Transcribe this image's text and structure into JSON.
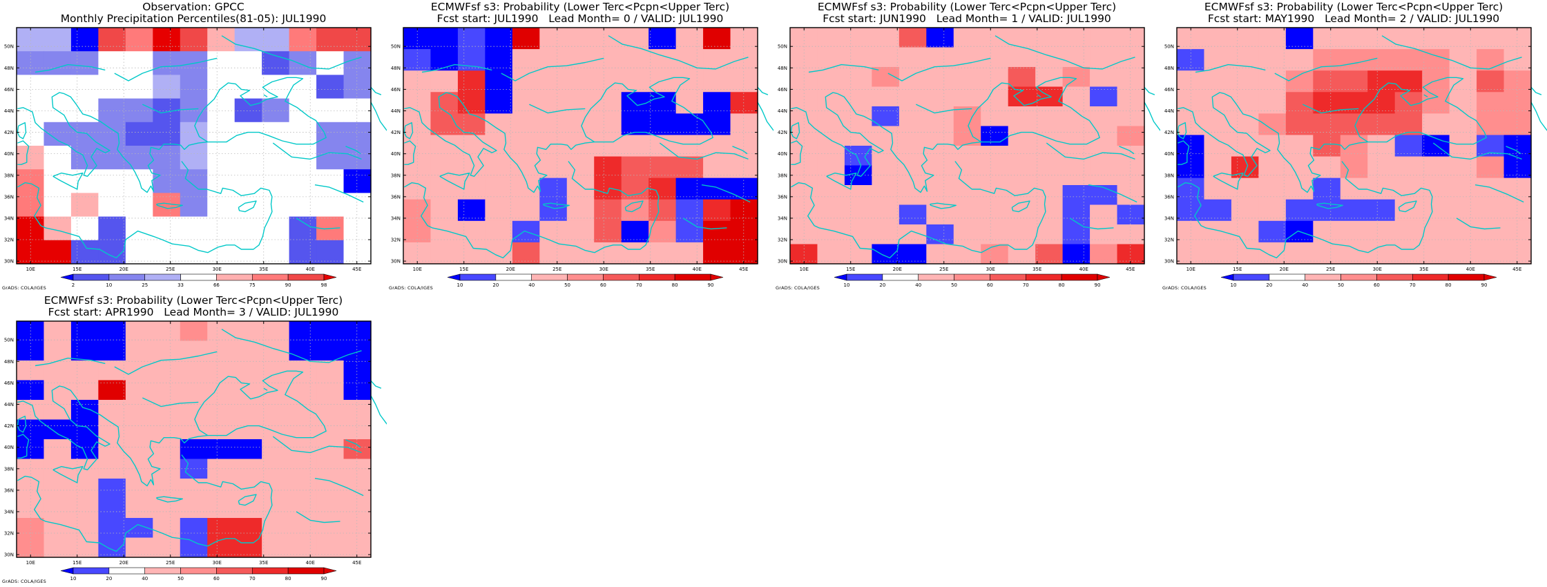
{
  "panels": [
    {
      "title1": "Observation: GPCC",
      "title2": "Monthly Precipitation Percentiles(81-05): JUL1990",
      "colorbar": {
        "labels": [
          "2",
          "10",
          "25",
          "33",
          "66",
          "75",
          "90",
          "98"
        ],
        "colors": [
          "#0000ff",
          "#5555ee",
          "#8585ee",
          "#b0b0f5",
          "#ffffff",
          "#ffb0b0",
          "#ff7a7a",
          "#f04848",
          "#e60000"
        ]
      },
      "cells": [
        [
          3,
          3,
          0,
          7,
          6,
          8,
          7,
          5,
          3,
          3,
          6,
          7,
          7
        ],
        [
          2,
          2,
          2,
          4,
          4,
          2,
          2,
          4,
          4,
          1,
          2,
          4,
          2
        ],
        [
          4,
          4,
          4,
          4,
          4,
          3,
          2,
          4,
          4,
          4,
          4,
          1,
          2
        ],
        [
          4,
          4,
          4,
          2,
          2,
          1,
          2,
          4,
          1,
          2,
          4,
          4,
          4
        ],
        [
          4,
          2,
          2,
          2,
          1,
          1,
          3,
          4,
          4,
          4,
          4,
          2,
          2
        ],
        [
          5,
          4,
          2,
          2,
          2,
          2,
          3,
          4,
          4,
          4,
          4,
          2,
          2
        ],
        [
          6,
          4,
          4,
          4,
          4,
          2,
          2,
          4,
          4,
          4,
          4,
          4,
          0
        ],
        [
          6,
          4,
          5,
          4,
          4,
          6,
          2,
          4,
          4,
          4,
          4,
          4,
          4
        ],
        [
          8,
          5,
          4,
          1,
          4,
          4,
          4,
          4,
          4,
          4,
          1,
          6,
          4
        ],
        [
          8,
          8,
          1,
          1,
          4,
          4,
          4,
          4,
          4,
          4,
          1,
          1,
          4
        ]
      ]
    },
    {
      "title1": "ECMWFsf s3: Probability (Lower Terc<Pcpn<Upper Terc)",
      "title2": "Fcst start: JUL1990   Lead Month= 0 / VALID: JUL1990",
      "colorbar": {
        "labels": [
          "10",
          "20",
          "40",
          "50",
          "60",
          "70",
          "80",
          "90"
        ],
        "colors": [
          "#0000ff",
          "#4848ff",
          "#ffffff",
          "#ffb5b5",
          "#ff8e8e",
          "#f55a5a",
          "#ee2a2a",
          "#e00000",
          "#e00000"
        ]
      },
      "cells": [
        [
          0,
          0,
          1,
          0,
          8,
          3,
          3,
          3,
          3,
          0,
          3,
          7,
          3
        ],
        [
          1,
          0,
          1,
          0,
          3,
          3,
          3,
          3,
          3,
          3,
          3,
          3,
          3
        ],
        [
          3,
          3,
          6,
          0,
          3,
          3,
          3,
          3,
          3,
          3,
          3,
          3,
          3
        ],
        [
          3,
          5,
          6,
          0,
          3,
          3,
          3,
          3,
          0,
          0,
          3,
          0,
          6
        ],
        [
          3,
          5,
          5,
          3,
          3,
          3,
          3,
          3,
          0,
          0,
          0,
          0,
          3
        ],
        [
          3,
          3,
          3,
          3,
          3,
          3,
          3,
          3,
          3,
          3,
          3,
          3,
          3
        ],
        [
          3,
          3,
          3,
          3,
          3,
          3,
          3,
          6,
          5,
          5,
          5,
          3,
          3
        ],
        [
          3,
          3,
          3,
          3,
          3,
          1,
          3,
          6,
          5,
          6,
          0,
          0,
          0
        ],
        [
          4,
          3,
          0,
          3,
          3,
          1,
          3,
          5,
          4,
          5,
          1,
          6,
          7
        ],
        [
          4,
          3,
          3,
          3,
          1,
          3,
          3,
          5,
          0,
          4,
          1,
          7,
          7
        ],
        [
          3,
          3,
          3,
          3,
          5,
          3,
          3,
          3,
          3,
          3,
          3,
          7,
          7
        ]
      ]
    },
    {
      "title1": "ECMWFsf s3: Probability (Lower Terc<Pcpn<Upper Terc)",
      "title2": "Fcst start: JUN1990   Lead Month= 1 / VALID: JUL1990",
      "colorbar": {
        "labels": [
          "10",
          "20",
          "40",
          "50",
          "60",
          "70",
          "80",
          "90"
        ],
        "colors": [
          "#0000ff",
          "#4848ff",
          "#ffffff",
          "#ffb5b5",
          "#ff8e8e",
          "#f55a5a",
          "#ee2a2a",
          "#e00000",
          "#e00000"
        ]
      },
      "cells": [
        [
          3,
          3,
          3,
          3,
          5,
          0,
          3,
          3,
          3,
          3,
          3,
          3,
          3
        ],
        [
          3,
          3,
          3,
          3,
          3,
          3,
          3,
          3,
          3,
          3,
          3,
          3,
          3
        ],
        [
          3,
          3,
          3,
          4,
          3,
          3,
          3,
          3,
          5,
          3,
          4,
          3,
          3
        ],
        [
          3,
          3,
          3,
          3,
          3,
          3,
          3,
          3,
          6,
          6,
          3,
          1,
          3
        ],
        [
          3,
          3,
          3,
          1,
          3,
          3,
          4,
          3,
          3,
          3,
          3,
          3,
          3
        ],
        [
          3,
          3,
          3,
          3,
          3,
          3,
          4,
          0,
          3,
          3,
          3,
          3,
          4
        ],
        [
          3,
          3,
          1,
          3,
          3,
          3,
          3,
          3,
          3,
          3,
          3,
          3,
          3
        ],
        [
          3,
          3,
          0,
          3,
          3,
          3,
          3,
          3,
          3,
          3,
          3,
          3,
          3
        ],
        [
          3,
          3,
          3,
          3,
          3,
          3,
          3,
          3,
          3,
          3,
          1,
          1,
          3
        ],
        [
          3,
          3,
          3,
          3,
          1,
          3,
          3,
          3,
          3,
          3,
          1,
          3,
          1
        ],
        [
          3,
          3,
          3,
          3,
          3,
          1,
          3,
          3,
          3,
          3,
          1,
          3,
          3
        ],
        [
          6,
          3,
          3,
          0,
          0,
          3,
          3,
          4,
          3,
          5,
          0,
          4,
          6
        ]
      ]
    },
    {
      "title1": "ECMWFsf s3: Probability (Lower Terc<Pcpn<Upper Terc)",
      "title2": "Fcst start: MAY1990   Lead Month= 2 / VALID: JUL1990",
      "colorbar": {
        "labels": [
          "10",
          "20",
          "40",
          "50",
          "60",
          "70",
          "80",
          "90"
        ],
        "colors": [
          "#0000ff",
          "#4848ff",
          "#ffffff",
          "#ffb5b5",
          "#ff8e8e",
          "#f55a5a",
          "#ee2a2a",
          "#e00000",
          "#e00000"
        ]
      },
      "cells": [
        [
          3,
          3,
          3,
          3,
          0,
          3,
          3,
          3,
          3,
          3,
          3,
          3,
          3
        ],
        [
          1,
          3,
          3,
          3,
          3,
          4,
          4,
          4,
          4,
          4,
          3,
          4,
          3
        ],
        [
          3,
          3,
          3,
          3,
          4,
          5,
          5,
          6,
          6,
          4,
          3,
          5,
          4
        ],
        [
          3,
          3,
          3,
          3,
          5,
          6,
          6,
          6,
          5,
          4,
          3,
          4,
          4
        ],
        [
          3,
          3,
          3,
          4,
          5,
          5,
          5,
          5,
          5,
          3,
          3,
          4,
          4
        ],
        [
          0,
          3,
          3,
          3,
          3,
          5,
          4,
          3,
          1,
          0,
          3,
          1,
          0
        ],
        [
          0,
          3,
          6,
          3,
          3,
          3,
          4,
          3,
          3,
          3,
          3,
          4,
          0
        ],
        [
          1,
          3,
          3,
          3,
          3,
          1,
          3,
          3,
          3,
          3,
          3,
          3,
          3
        ],
        [
          1,
          1,
          3,
          3,
          1,
          1,
          1,
          1,
          3,
          3,
          3,
          3,
          3
        ],
        [
          3,
          3,
          3,
          1,
          0,
          3,
          3,
          3,
          3,
          3,
          3,
          3,
          3
        ],
        [
          3,
          3,
          3,
          3,
          3,
          3,
          3,
          3,
          3,
          3,
          3,
          3,
          3
        ]
      ]
    },
    {
      "title1": "ECMWFsf s3: Probability (Lower Terc<Pcpn<Upper Terc)",
      "title2": "Fcst start: APR1990   Lead Month= 3 / VALID: JUL1990",
      "colorbar": {
        "labels": [
          "10",
          "20",
          "40",
          "50",
          "60",
          "70",
          "80",
          "90"
        ],
        "colors": [
          "#0000ff",
          "#4848ff",
          "#ffffff",
          "#ffb5b5",
          "#ff8e8e",
          "#f55a5a",
          "#ee2a2a",
          "#e00000",
          "#e00000"
        ]
      },
      "cells": [
        [
          0,
          3,
          0,
          0,
          3,
          3,
          4,
          3,
          3,
          3,
          0,
          0,
          0
        ],
        [
          0,
          3,
          0,
          0,
          3,
          3,
          3,
          3,
          3,
          3,
          0,
          0,
          0
        ],
        [
          3,
          3,
          3,
          3,
          3,
          3,
          3,
          3,
          3,
          3,
          3,
          3,
          0
        ],
        [
          0,
          3,
          3,
          7,
          3,
          3,
          3,
          3,
          3,
          3,
          3,
          3,
          0
        ],
        [
          3,
          3,
          0,
          3,
          3,
          3,
          3,
          3,
          3,
          3,
          3,
          3,
          3
        ],
        [
          0,
          0,
          0,
          3,
          3,
          3,
          3,
          3,
          3,
          3,
          3,
          3,
          3
        ],
        [
          0,
          3,
          0,
          3,
          3,
          3,
          0,
          0,
          0,
          3,
          3,
          3,
          5
        ],
        [
          3,
          3,
          3,
          3,
          3,
          3,
          1,
          3,
          3,
          3,
          3,
          3,
          3
        ],
        [
          3,
          3,
          3,
          1,
          3,
          3,
          3,
          3,
          3,
          3,
          3,
          3,
          3
        ],
        [
          3,
          3,
          3,
          1,
          3,
          3,
          3,
          3,
          3,
          3,
          3,
          3,
          3
        ],
        [
          4,
          3,
          3,
          1,
          1,
          3,
          1,
          6,
          6,
          3,
          3,
          3,
          3
        ],
        [
          4,
          3,
          3,
          1,
          3,
          3,
          1,
          6,
          6,
          3,
          3,
          3,
          3
        ]
      ]
    }
  ],
  "map": {
    "x_ticks": [
      "10E",
      "15E",
      "20E",
      "25E",
      "30E",
      "35E",
      "40E",
      "45E"
    ],
    "y_ticks": [
      "30N",
      "32N",
      "34N",
      "36N",
      "38N",
      "40N",
      "42N",
      "44N",
      "46N",
      "48N",
      "50N"
    ],
    "coast_color": "#00c8c8",
    "grads_label": "GrADS: COLA/IGES"
  }
}
